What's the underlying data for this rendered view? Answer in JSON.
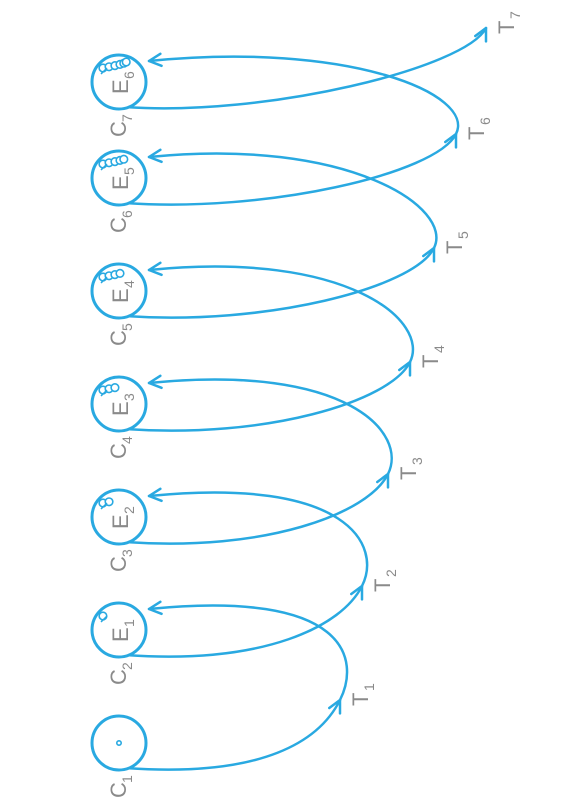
{
  "labels": {
    "cycles": [
      "C1",
      "C2",
      "C3",
      "C4",
      "C5",
      "C6",
      "C7"
    ],
    "transitions": [
      "T1",
      "T2",
      "T3",
      "T4",
      "T5",
      "T6",
      "T7"
    ],
    "experiences": [
      "E1",
      "E2",
      "E3",
      "E4",
      "E5",
      "E6"
    ]
  },
  "colors": {
    "stroke": "#29a9e1",
    "label": "#8a8a8a"
  }
}
